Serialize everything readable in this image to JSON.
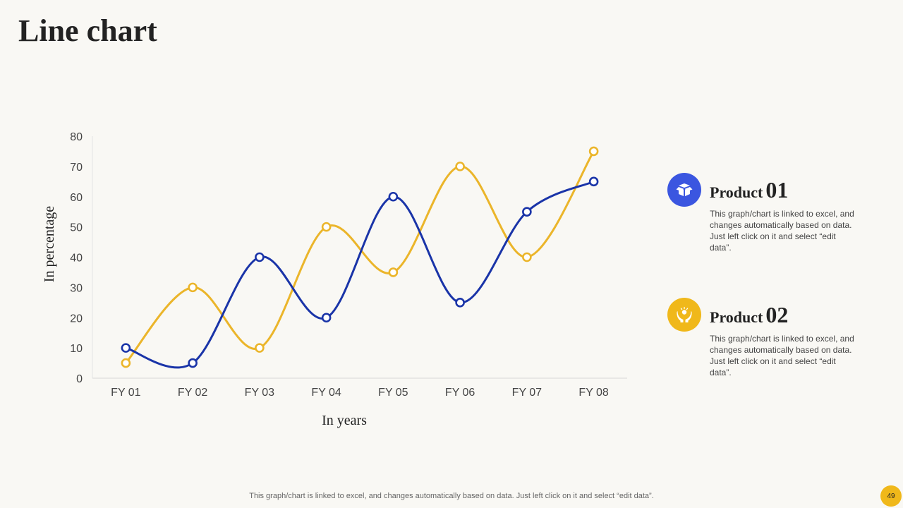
{
  "slide": {
    "title": "Line chart",
    "footer_note": "This graph/chart is linked to excel,  and changes automatically based on data. Just left click on it and select “edit data”.",
    "page_number": "49"
  },
  "products": [
    {
      "word": "Product",
      "number": "01",
      "description": "This graph/chart is linked to excel, and changes automatically based on data. Just left click on it and select “edit data”.",
      "icon": "open-box-icon",
      "color": "#3b56e0"
    },
    {
      "word": "Product",
      "number": "02",
      "description": "This graph/chart is linked to excel, and changes automatically based on data. Just left click on it and select “edit data”.",
      "icon": "hands-holding-icon",
      "color": "#f0b81a"
    }
  ],
  "chart_data": {
    "type": "line",
    "title": "",
    "xlabel": "In years",
    "ylabel": "In percentage",
    "categories": [
      "FY 01",
      "FY 02",
      "FY 03",
      "FY 04",
      "FY 05",
      "FY 06",
      "FY 07",
      "FY 08"
    ],
    "ylim": [
      0,
      80
    ],
    "yticks": [
      0,
      10,
      20,
      30,
      40,
      50,
      60,
      70,
      80
    ],
    "grid": false,
    "smooth": true,
    "series": [
      {
        "values": [
          10,
          5,
          40,
          20,
          60,
          25,
          55,
          65
        ],
        "color": "#1a34a8"
      },
      {
        "values": [
          5,
          30,
          10,
          50,
          35,
          70,
          40,
          75
        ],
        "color": "#ebb52a"
      }
    ]
  }
}
